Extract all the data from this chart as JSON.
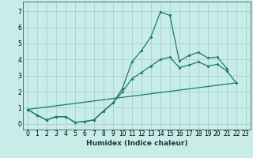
{
  "xlabel": "Humidex (Indice chaleur)",
  "background_color": "#c8ede8",
  "grid_color": "#aacfcc",
  "line_color": "#1a7a6a",
  "ylim": [
    -0.35,
    7.6
  ],
  "xlim": [
    -0.5,
    23.5
  ],
  "yticks": [
    0,
    1,
    2,
    3,
    4,
    5,
    6,
    7
  ],
  "xticks": [
    0,
    1,
    2,
    3,
    4,
    5,
    6,
    7,
    8,
    9,
    10,
    11,
    12,
    13,
    14,
    15,
    16,
    17,
    18,
    19,
    20,
    21,
    22,
    23
  ],
  "curve1_x": [
    0,
    1,
    2,
    3,
    4,
    5,
    6,
    7,
    8,
    9,
    10,
    11,
    12,
    13,
    14,
    15,
    16,
    17,
    18,
    19,
    20,
    21
  ],
  "curve1_y": [
    0.9,
    0.55,
    0.25,
    0.45,
    0.45,
    0.1,
    0.15,
    0.25,
    0.8,
    1.3,
    2.2,
    3.85,
    4.55,
    5.4,
    6.95,
    6.75,
    3.9,
    4.25,
    4.45,
    4.1,
    4.15,
    3.45
  ],
  "curve2_x": [
    0,
    1,
    2,
    3,
    4,
    5,
    6,
    7,
    8,
    9,
    10,
    11,
    12,
    13,
    14,
    15,
    16,
    17,
    18,
    19,
    20,
    21,
    22
  ],
  "curve2_y": [
    0.9,
    0.55,
    0.25,
    0.45,
    0.45,
    0.1,
    0.15,
    0.25,
    0.8,
    1.3,
    2.0,
    2.8,
    3.2,
    3.6,
    4.0,
    4.15,
    3.5,
    3.65,
    3.85,
    3.6,
    3.7,
    3.3,
    2.55
  ],
  "curve3_x": [
    0,
    22
  ],
  "curve3_y": [
    0.9,
    2.55
  ]
}
